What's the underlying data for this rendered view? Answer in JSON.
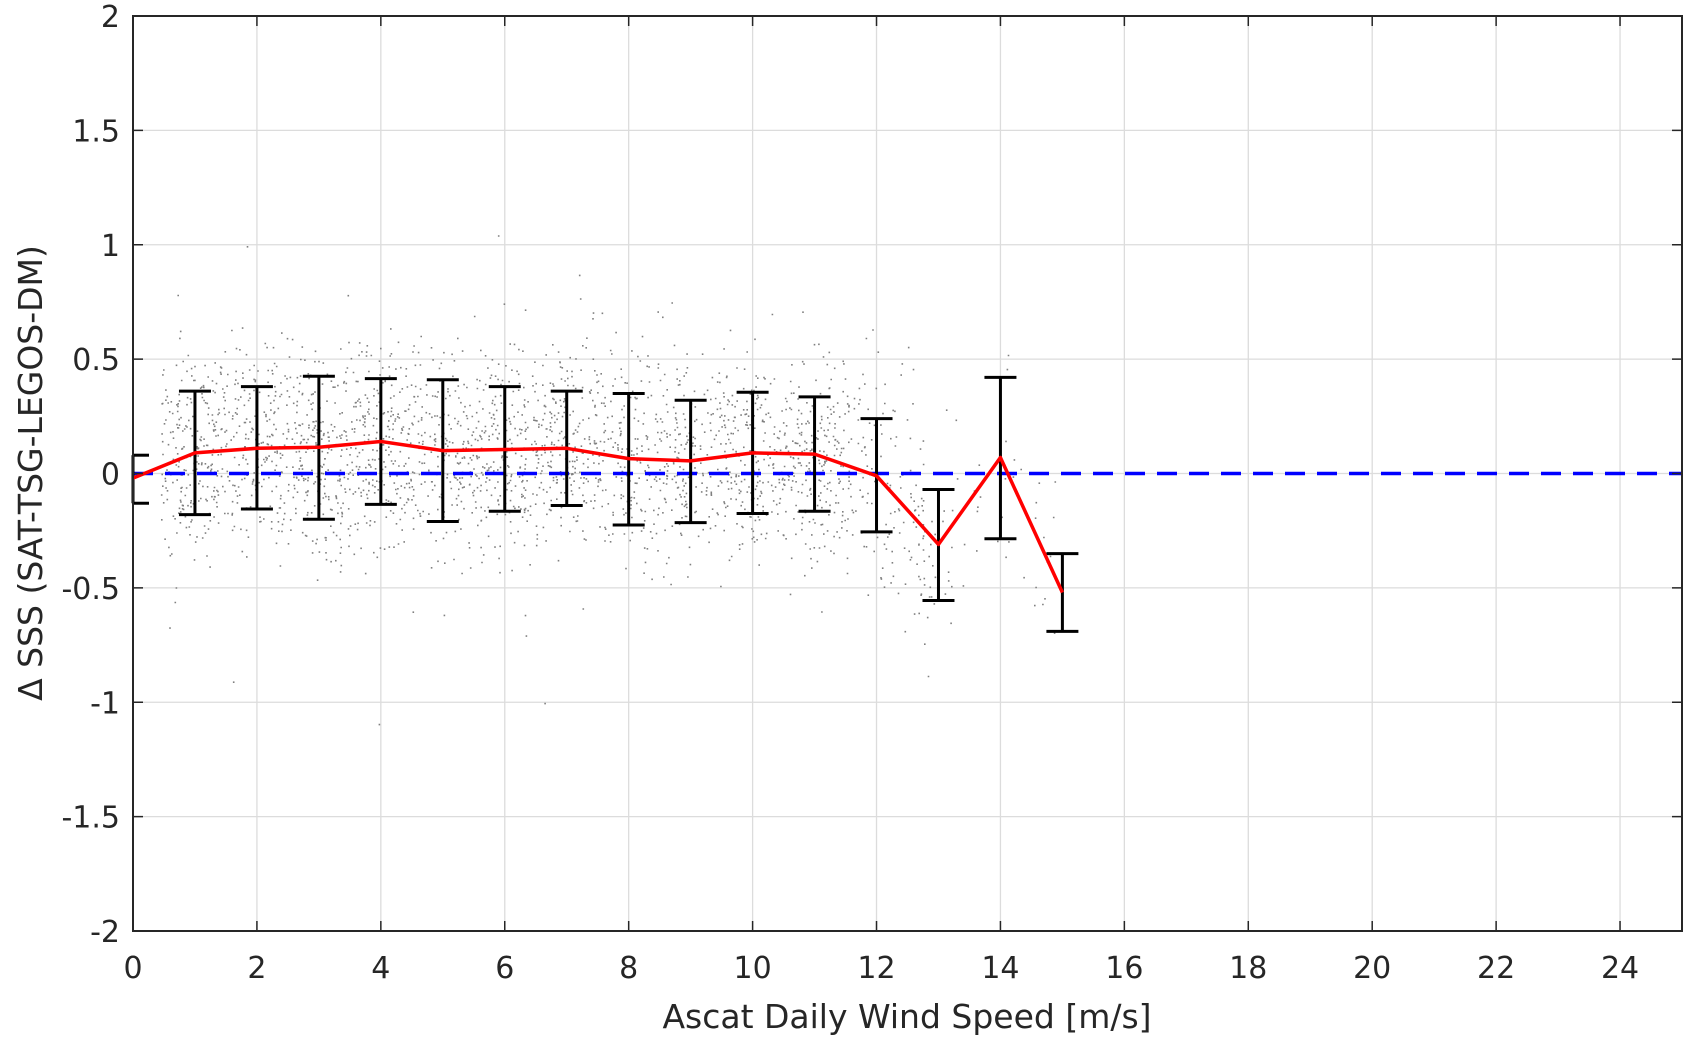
{
  "chart_data": {
    "type": "scatter",
    "title": "",
    "xlabel": "Ascat Daily Wind Speed [m/s]",
    "ylabel": "Δ SSS (SAT-TSG-LEGOS-DM)",
    "xlim": [
      0,
      25
    ],
    "ylim": [
      -2,
      2
    ],
    "x_ticks": [
      0,
      2,
      4,
      6,
      8,
      10,
      12,
      14,
      16,
      18,
      20,
      22,
      24
    ],
    "y_ticks": [
      -2,
      -1.5,
      -1,
      -0.5,
      0,
      0.5,
      1,
      1.5,
      2
    ],
    "grid": true,
    "scatter_color": "#808080",
    "scatter_description": "dense cloud of grey points",
    "scatter_range_x": [
      0.3,
      15
    ],
    "binned_mean": {
      "color": "#ff0000",
      "x": [
        0,
        1,
        2,
        3,
        4,
        5,
        6,
        7,
        8,
        9,
        10,
        11,
        12,
        13,
        14,
        15
      ],
      "y": [
        -0.02,
        0.09,
        0.11,
        0.115,
        0.14,
        0.1,
        0.105,
        0.11,
        0.065,
        0.055,
        0.09,
        0.085,
        -0.01,
        -0.31,
        0.07,
        -0.52
      ]
    },
    "error_bars": {
      "color": "#000000",
      "x": [
        0,
        1,
        2,
        3,
        4,
        5,
        6,
        7,
        8,
        9,
        10,
        11,
        12,
        13,
        14,
        15
      ],
      "lower": [
        -0.13,
        -0.18,
        -0.155,
        -0.2,
        -0.135,
        -0.21,
        -0.165,
        -0.14,
        -0.225,
        -0.215,
        -0.175,
        -0.165,
        -0.255,
        -0.555,
        -0.285,
        -0.69
      ],
      "upper": [
        0.08,
        0.36,
        0.38,
        0.425,
        0.415,
        0.41,
        0.38,
        0.36,
        0.35,
        0.32,
        0.355,
        0.335,
        0.24,
        -0.07,
        0.42,
        -0.35
      ]
    },
    "reference_line": {
      "y": 0,
      "color": "#0000ff",
      "style": "dashed"
    }
  }
}
